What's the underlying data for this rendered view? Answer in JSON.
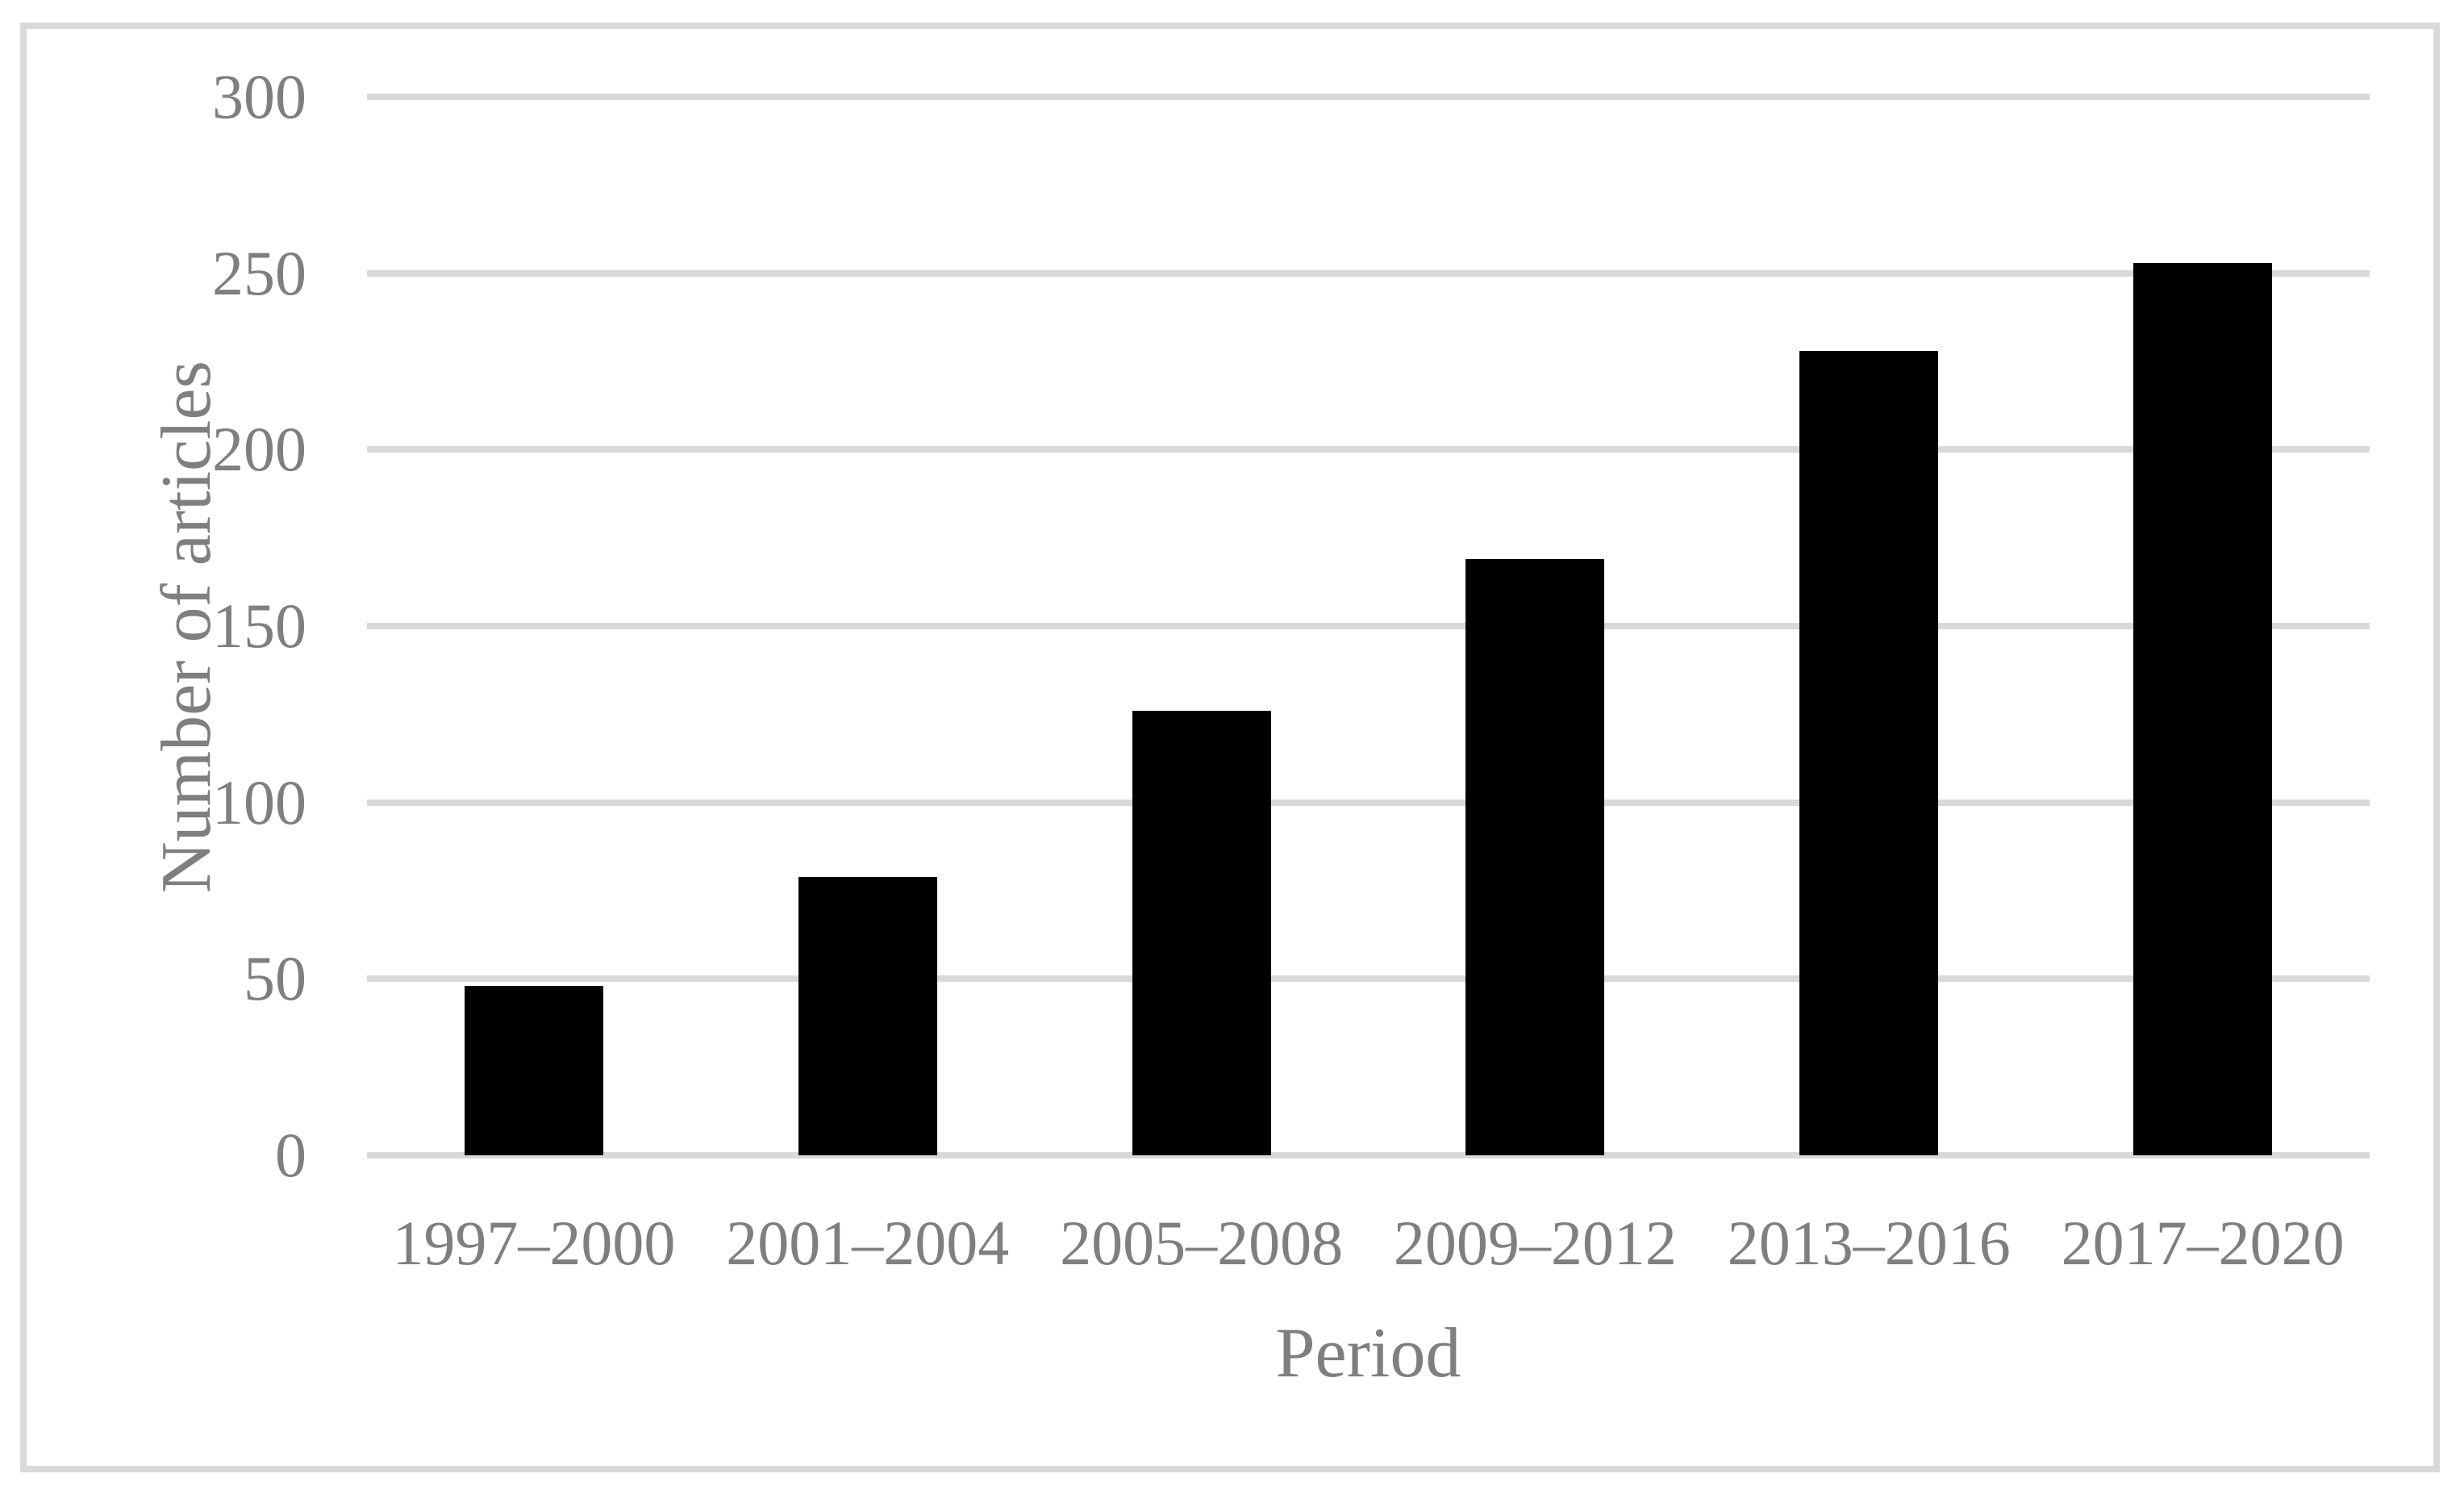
{
  "figure": {
    "background_color": "#ffffff",
    "frame_color": "#d9d9d9",
    "label_color": "#7f7f7f"
  },
  "chart_data": {
    "type": "bar",
    "title": "",
    "xlabel": "Period",
    "ylabel": "Number of articles",
    "categories": [
      "1997–2000",
      "2001–2004",
      "2005–2008",
      "2009–2012",
      "2013–2016",
      "2017–2020"
    ],
    "values": [
      48,
      79,
      126,
      169,
      228,
      253
    ],
    "ylim": [
      0,
      300
    ],
    "yticks": [
      0,
      50,
      100,
      150,
      200,
      250,
      300
    ],
    "grid": true,
    "gridline_color": "#d9d9d9",
    "bar_color": "#000000",
    "legend": "none"
  }
}
